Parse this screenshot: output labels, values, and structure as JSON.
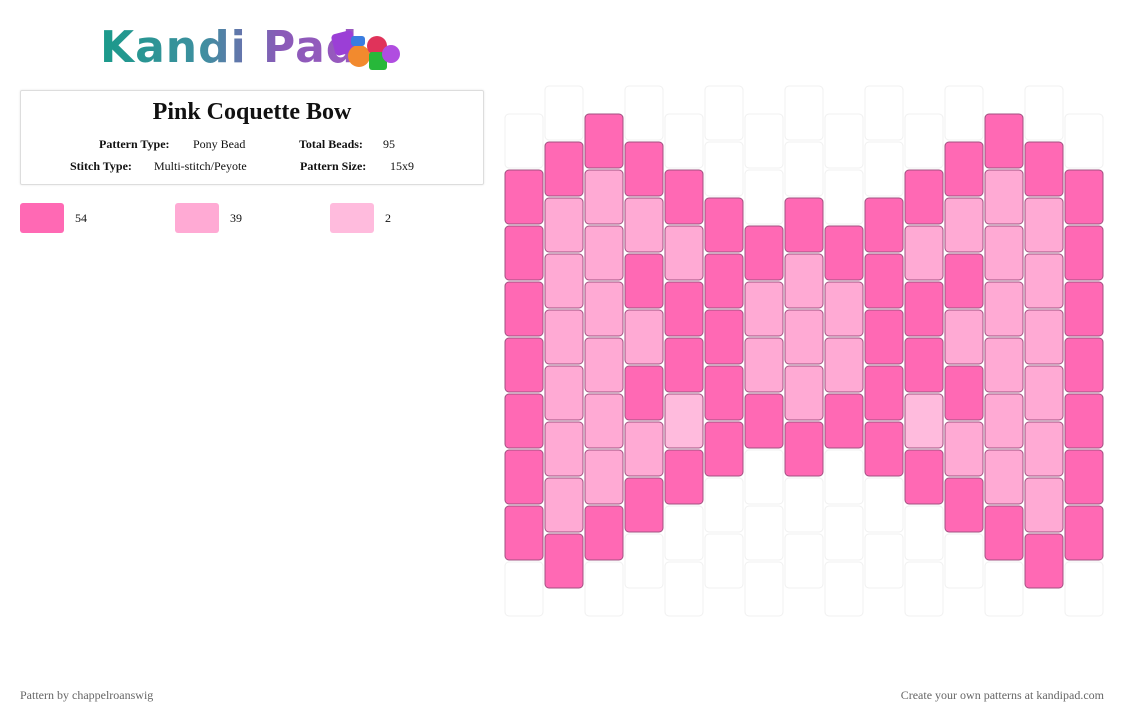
{
  "header": {
    "logo": "Kandi Pad"
  },
  "pattern": {
    "title": "Pink Coquette Bow",
    "fields": [
      {
        "label": "Pattern Type:",
        "value": "Pony Bead"
      },
      {
        "label": "Total Beads:",
        "value": "95"
      },
      {
        "label": "Stitch Type:",
        "value": "Multi-stitch/Peyote"
      },
      {
        "label": "Pattern Size:",
        "value": "15x9"
      }
    ],
    "legend": [
      {
        "color": "#ff69b4",
        "count": "54"
      },
      {
        "color": "#ffaad4",
        "count": "39"
      },
      {
        "color": "#ffbbdd",
        "count": "2"
      }
    ],
    "columns": [
      [
        null,
        0,
        0,
        0,
        0,
        0,
        0,
        0,
        null
      ],
      [
        null,
        0,
        1,
        1,
        1,
        1,
        1,
        1,
        0
      ],
      [
        0,
        1,
        1,
        1,
        1,
        1,
        1,
        0,
        null
      ],
      [
        null,
        0,
        1,
        0,
        1,
        0,
        1,
        0,
        null
      ],
      [
        null,
        0,
        1,
        0,
        0,
        2,
        0,
        null,
        null
      ],
      [
        null,
        null,
        0,
        0,
        0,
        0,
        0,
        null,
        null
      ],
      [
        null,
        null,
        0,
        1,
        1,
        0,
        null,
        null,
        null
      ],
      [
        null,
        null,
        0,
        1,
        1,
        1,
        0,
        null,
        null
      ],
      [
        null,
        null,
        0,
        1,
        1,
        0,
        null,
        null,
        null
      ],
      [
        null,
        null,
        0,
        0,
        0,
        0,
        0,
        null,
        null
      ],
      [
        null,
        0,
        1,
        0,
        0,
        2,
        0,
        null,
        null
      ],
      [
        null,
        0,
        1,
        0,
        1,
        0,
        1,
        0,
        null
      ],
      [
        0,
        1,
        1,
        1,
        1,
        1,
        1,
        0,
        null
      ],
      [
        null,
        0,
        1,
        1,
        1,
        1,
        1,
        1,
        0
      ],
      [
        null,
        0,
        0,
        0,
        0,
        0,
        0,
        0,
        null
      ]
    ]
  },
  "footer": {
    "left": "Pattern by chappelroanswig",
    "right": "Create your own patterns at kandipad.com"
  }
}
